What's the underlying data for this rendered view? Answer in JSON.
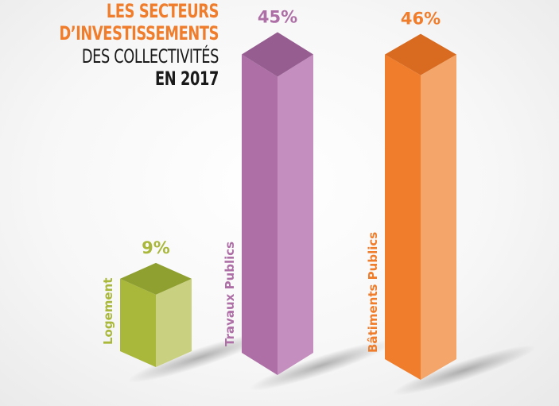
{
  "title": {
    "line1": "LES SECTEURS",
    "line2": "D’INVESTISSEMENTS",
    "line3": "DES COLLECTIVITÉS",
    "line4": "EN 2017",
    "accent_color": "#f07d2b",
    "dark_color": "#1a1a1a"
  },
  "chart_data": {
    "type": "bar",
    "style": "3d-columns",
    "title": "LES SECTEURS D’INVESTISSEMENTS DES COLLECTIVITÉS EN 2017",
    "categories": [
      "Logement",
      "Travaux Publics",
      "Bâtiments Publics"
    ],
    "values": [
      9,
      45,
      46
    ],
    "value_labels": [
      "9%",
      "45%",
      "46%"
    ],
    "unit": "%",
    "colors": [
      {
        "front": "#a9b83a",
        "side": "#c9d07f",
        "top": "#8fa030"
      },
      {
        "front": "#ad6fa6",
        "side": "#c48fbe",
        "top": "#965e90"
      },
      {
        "front": "#f07d2b",
        "side": "#f3a56a",
        "top": "#d86b20"
      }
    ],
    "label_colors": [
      "#a9b83a",
      "#ad6fa6",
      "#f07d2b"
    ],
    "grid": false,
    "legend": "none"
  }
}
